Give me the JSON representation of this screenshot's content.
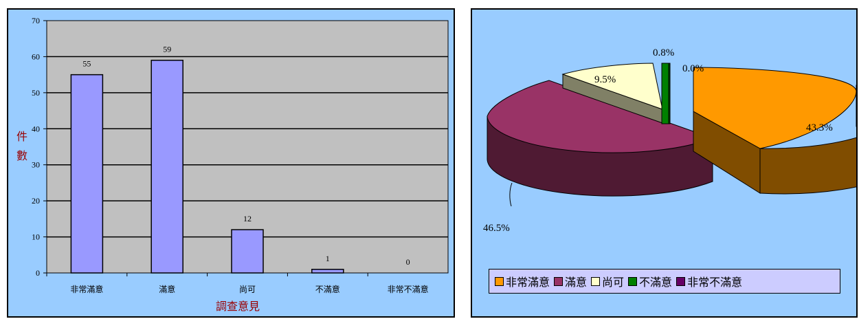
{
  "chart_data": [
    {
      "type": "bar",
      "categories": [
        "非常滿意",
        "滿意",
        "尚可",
        "不滿意",
        "非常不滿意"
      ],
      "values": [
        55,
        59,
        12,
        1,
        0
      ],
      "xlabel": "調查意見",
      "ylabel": "件數",
      "ylim": [
        0,
        70
      ],
      "yticks": [
        0,
        10,
        20,
        30,
        40,
        50,
        60,
        70
      ],
      "grid": true,
      "colors": {
        "bar": "#9999ff",
        "plot_bg": "#c0c0c0",
        "panel_bg": "#99ccff",
        "axis_title": "#990000"
      }
    },
    {
      "type": "pie",
      "style": "3d-exploded",
      "categories": [
        "非常滿意",
        "滿意",
        "尚可",
        "不滿意",
        "非常不滿意"
      ],
      "values": [
        43.3,
        46.5,
        9.5,
        0.8,
        0.0
      ],
      "labels": [
        "43.3%",
        "46.5%",
        "9.5%",
        "0.8%",
        "0.0%"
      ],
      "legend": "bottom",
      "colors": [
        "#ff9900",
        "#993366",
        "#ffffcc",
        "#008000",
        "#660066"
      ]
    }
  ]
}
